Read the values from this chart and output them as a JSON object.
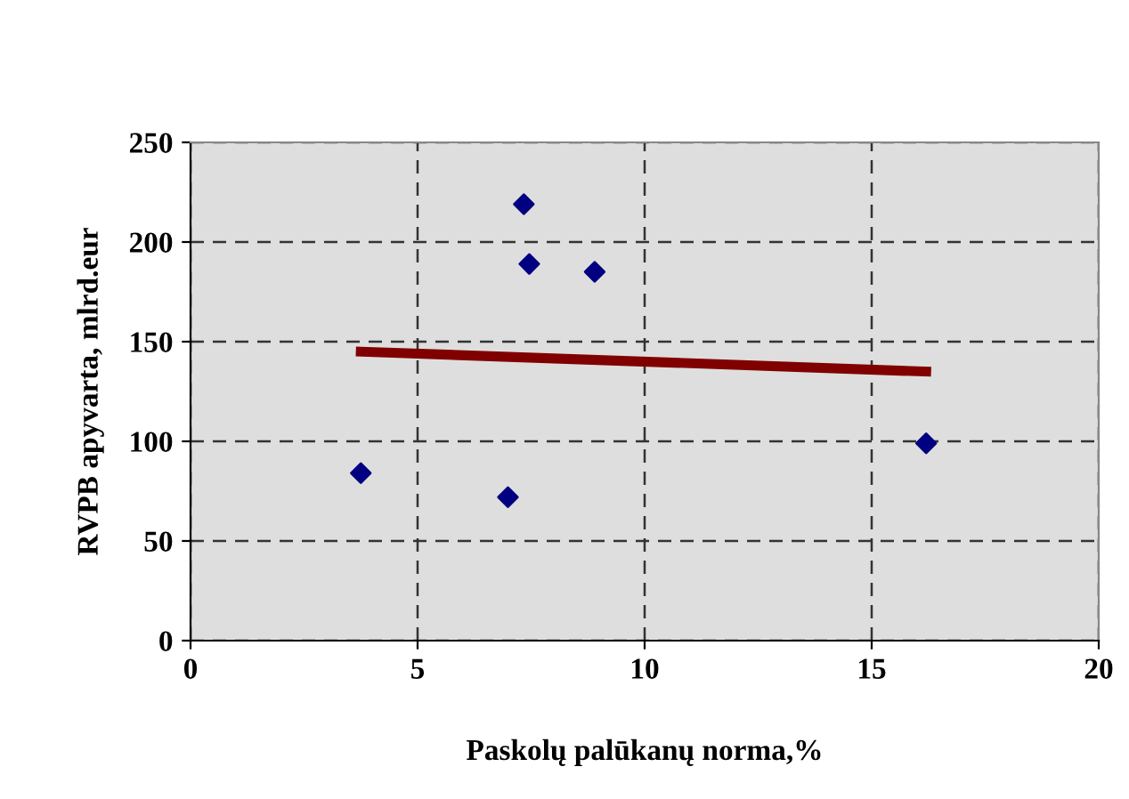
{
  "chart_data": {
    "type": "scatter",
    "xlabel": "Paskolų palūkanų norma,%",
    "ylabel": "RVPB apyvarta, mlrd.eur",
    "xlim": [
      0,
      20
    ],
    "xticks": [
      0,
      5,
      10,
      15,
      20
    ],
    "ylim": [
      0,
      250
    ],
    "yticks": [
      0,
      50,
      100,
      150,
      200,
      250
    ],
    "grid": true,
    "legend": false,
    "series": [
      {
        "color": "#000080",
        "marker": "diamond",
        "x": [
          3.75,
          6.99,
          7.34,
          7.46,
          8.9,
          16.2
        ],
        "values": [
          84,
          72,
          219,
          189,
          185,
          99
        ]
      },
      {
        "type": "line",
        "color": "#800000",
        "marker": "none",
        "x": [
          3.75,
          16.2
        ],
        "values": [
          145,
          135
        ]
      }
    ]
  }
}
